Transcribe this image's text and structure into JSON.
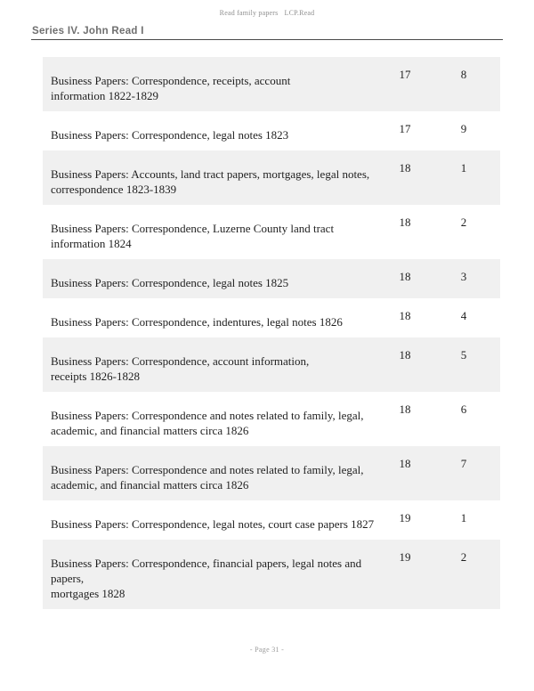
{
  "header": {
    "title": "Read family papers",
    "call_number": "LCP.Read"
  },
  "series": {
    "heading": "Series IV. John Read I"
  },
  "table": {
    "rows": [
      {
        "description": "Business Papers: Correspondence, receipts, account\ninformation 1822-1829",
        "box": "17",
        "folder": "8"
      },
      {
        "description": "Business Papers: Correspondence, legal notes 1823",
        "box": "17",
        "folder": "9"
      },
      {
        "description": "Business Papers: Accounts, land tract papers, mortgages, legal notes,\ncorrespondence 1823-1839",
        "box": "18",
        "folder": "1"
      },
      {
        "description": "Business Papers: Correspondence, Luzerne County land tract\ninformation 1824",
        "box": "18",
        "folder": "2"
      },
      {
        "description": "Business Papers: Correspondence, legal notes 1825",
        "box": "18",
        "folder": "3"
      },
      {
        "description": "Business Papers: Correspondence, indentures, legal notes 1826",
        "box": "18",
        "folder": "4"
      },
      {
        "description": "Business Papers: Correspondence, account information,\nreceipts 1826-1828",
        "box": "18",
        "folder": "5"
      },
      {
        "description": "Business Papers: Correspondence and notes related to family, legal,\nacademic, and financial matters circa 1826",
        "box": "18",
        "folder": "6"
      },
      {
        "description": "Business Papers: Correspondence and notes related to family, legal,\nacademic, and financial matters circa 1826",
        "box": "18",
        "folder": "7"
      },
      {
        "description": "Business Papers: Correspondence, legal notes, court case papers 1827",
        "box": "19",
        "folder": "1"
      },
      {
        "description": "Business Papers: Correspondence, financial papers, legal notes and papers,\nmortgages 1828",
        "box": "19",
        "folder": "2"
      }
    ]
  },
  "footer": {
    "text": "- Page 31 -"
  },
  "colors": {
    "row_shade": "#f0f0f0",
    "body_text": "#1f1f1f",
    "heading_text": "#6f6f6f",
    "muted_text": "#8f8f8f",
    "rule": "#4a4a4a"
  }
}
